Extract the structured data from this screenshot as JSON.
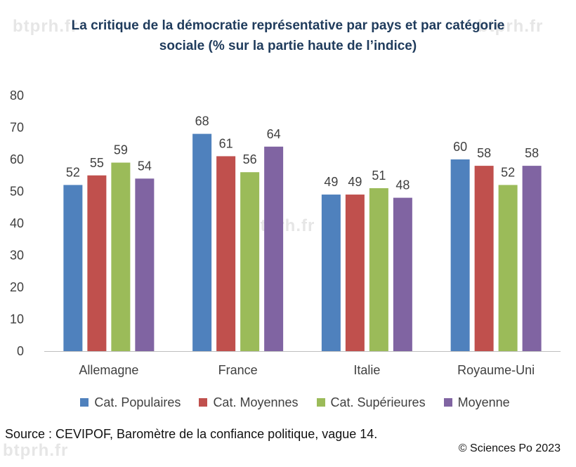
{
  "title": {
    "line1": "La critique de la démocratie représentative par pays et par catégorie",
    "line2": "sociale (% sur la partie haute de l’indice)"
  },
  "watermarks": [
    "btprh.fr",
    "btprh.fr",
    "btprh.fr",
    "btprh.fr"
  ],
  "source": "Source : CEVIPOF, Baromètre de la confiance politique, vague 14.",
  "credit": "© Sciences Po 2023",
  "chart_data": {
    "type": "bar",
    "title": "La critique de la démocratie représentative par pays et par catégorie sociale (% sur la partie haute de l’indice)",
    "xlabel": "",
    "ylabel": "",
    "ylim": [
      0,
      80
    ],
    "yticks": [
      0,
      10,
      20,
      30,
      40,
      50,
      60,
      70,
      80
    ],
    "grid": false,
    "legend_position": "bottom",
    "categories": [
      "Allemagne",
      "France",
      "Italie",
      "Royaume-Uni"
    ],
    "series": [
      {
        "name": "Cat. Populaires",
        "color": "#4f81bd",
        "values": [
          52,
          68,
          49,
          60
        ]
      },
      {
        "name": "Cat. Moyennes",
        "color": "#c0504d",
        "values": [
          55,
          61,
          49,
          58
        ]
      },
      {
        "name": "Cat. Supérieures",
        "color": "#9bbb59",
        "values": [
          59,
          56,
          51,
          52
        ]
      },
      {
        "name": "Moyenne",
        "color": "#8064a2",
        "values": [
          54,
          64,
          48,
          58
        ]
      }
    ],
    "data_labels": true
  }
}
